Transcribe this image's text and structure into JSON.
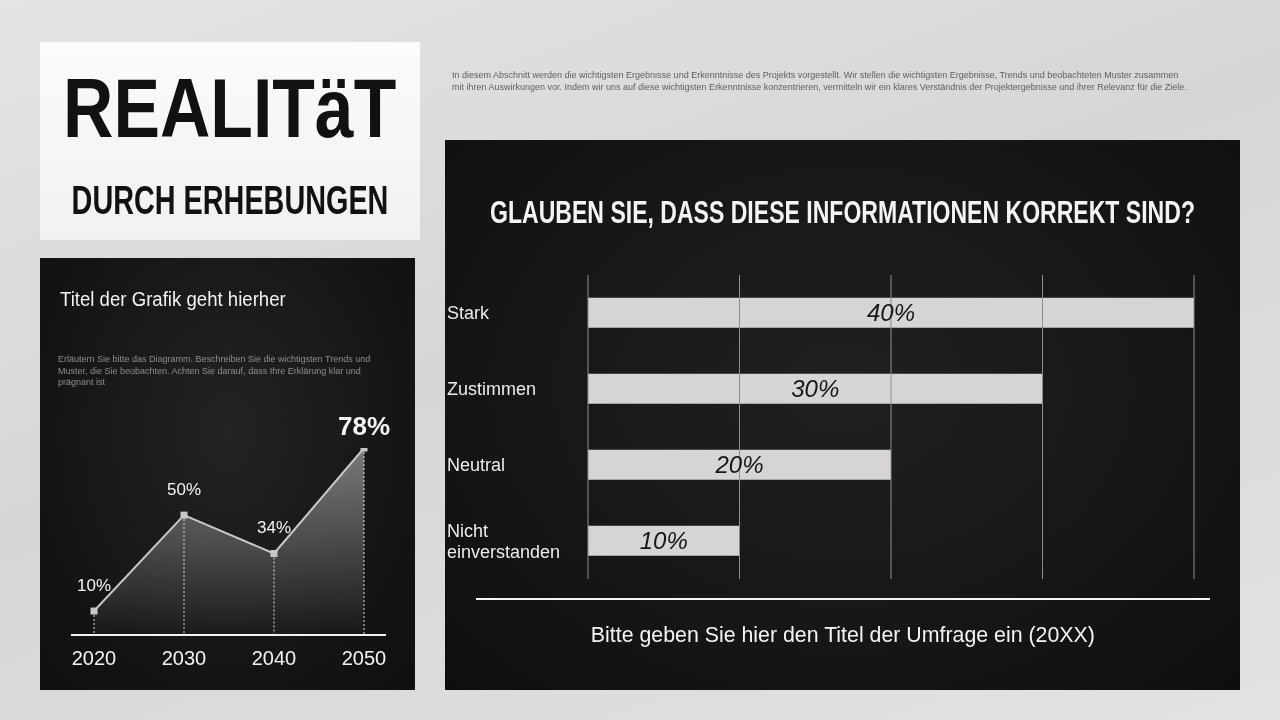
{
  "chart_data": [
    {
      "type": "other",
      "title": "REALITäT",
      "subtitle": "DURCH ERHEBUNGEN",
      "annotations": [
        "In diesem Abschnitt werden die wichtigsten Ergebnisse und Erkenntnisse des Projekts vorgestellt. Wir stellen die wichtigsten Ergebnisse, Trends und beobachteten Muster zusammen mit ihren Auswirkungen vor. Indem wir uns auf diese wichtigsten Erkenntnisse konzentrieren, vermitteln wir ein klares Verständnis der Projektergebnisse und ihrer Relevanz für die Ziele."
      ]
    },
    {
      "type": "area",
      "title": "Titel der Grafik geht hierher",
      "annotations": [
        "Erläutern Sie bitte das Diagramm. Beschreiben Sie die wichtigsten Trends und Muster, die Sie beobachten. Achten Sie darauf, dass Ihre Erklärung klar und prägnant ist"
      ],
      "categories": [
        "2020",
        "2030",
        "2040",
        "2050"
      ],
      "series": [
        {
          "color": "#c8c8c8",
          "values": [
            10,
            50,
            34,
            78
          ],
          "value_labels": [
            "10%",
            "50%",
            "34%",
            "78%"
          ]
        }
      ],
      "marker": "square",
      "grid": "x",
      "tick_labels": "x"
    },
    {
      "type": "bar",
      "orientation": "horizontal",
      "title": "GLAUBEN SIE, DASS DIESE INFORMATIONEN KORREKT SIND?",
      "annotations": [
        "Bitte geben Sie hier den Titel der Umfrage ein (20XX)"
      ],
      "categories": [
        "Stark",
        "Zustimmen",
        "Neutral",
        "Nicht einverstanden"
      ],
      "values": [
        40,
        30,
        20,
        10
      ],
      "value_labels": [
        "40%",
        "30%",
        "20%",
        "10%"
      ],
      "color": "#d6d4d5",
      "xlim": [
        0,
        40
      ],
      "xticks": [
        {
          "value": 0,
          "label": null
        },
        {
          "value": 10,
          "label": null
        },
        {
          "value": 20,
          "label": null
        },
        {
          "value": 30,
          "label": null
        },
        {
          "value": 40,
          "label": null
        }
      ],
      "grid": "x",
      "tick_labels": "y"
    }
  ]
}
